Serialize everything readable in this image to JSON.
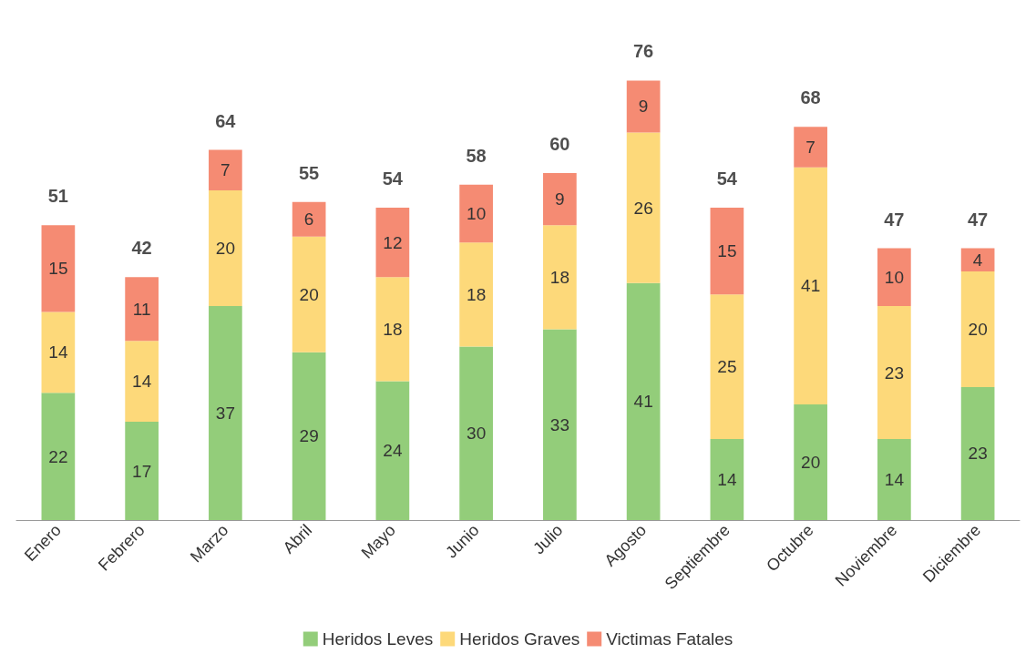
{
  "chart_data": {
    "type": "bar",
    "stacked": true,
    "data_labels": true,
    "legend": "bottom",
    "categories": [
      "Enero",
      "Febrero",
      "Marzo",
      "Abril",
      "Mayo",
      "Junio",
      "Julio",
      "Agosto",
      "Septiembre",
      "Octubre",
      "Noviembre",
      "Diciembre"
    ],
    "series": [
      {
        "name": "Heridos Leves",
        "color": "#93cd7a",
        "values": [
          22,
          17,
          37,
          29,
          24,
          30,
          33,
          41,
          14,
          20,
          14,
          23
        ]
      },
      {
        "name": "Heridos Graves",
        "color": "#fdd97a",
        "values": [
          14,
          14,
          20,
          20,
          18,
          18,
          18,
          26,
          25,
          41,
          23,
          20
        ]
      },
      {
        "name": "Victimas Fatales",
        "color": "#f58b73",
        "values": [
          15,
          11,
          7,
          6,
          12,
          10,
          9,
          9,
          15,
          7,
          10,
          4
        ]
      }
    ],
    "totals": [
      "51",
      "42",
      "64",
      "55",
      "54",
      "58",
      "60",
      "76",
      "54",
      "68",
      "47",
      "47"
    ]
  }
}
